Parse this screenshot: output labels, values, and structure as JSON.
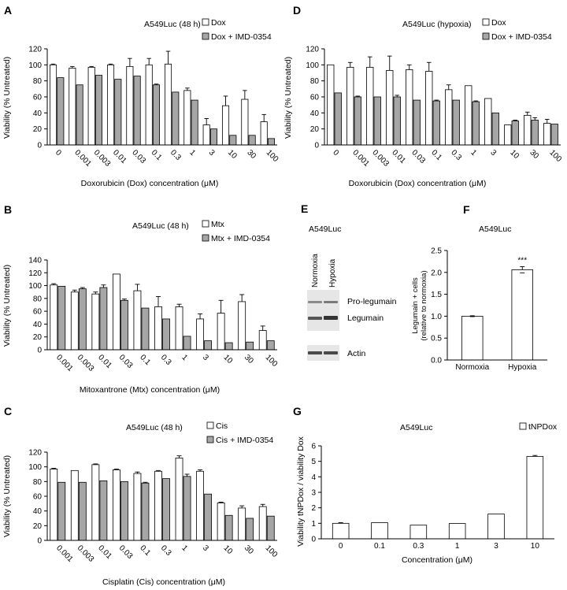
{
  "colors": {
    "bar_a": "#ffffff",
    "bar_b": "#a6a6a6",
    "stroke": "#000000",
    "band": "#444444"
  },
  "chart_data": [
    {
      "id": "A",
      "type": "bar",
      "panel_letter": "A",
      "title": "A549Luc (48 h)",
      "ylabel": "Viability (% Untreated)",
      "xlabel": "Doxorubicin (Dox) concentration (μM)",
      "ylim": [
        0,
        120
      ],
      "yticks": [
        0,
        20,
        40,
        60,
        80,
        100,
        120
      ],
      "grid": false,
      "legend": "top-right",
      "categories": [
        "0",
        "0.001",
        "0.003",
        "0.01",
        "0.03",
        "0.1",
        "0.3",
        "1",
        "3",
        "10",
        "30",
        "100"
      ],
      "series": [
        {
          "name": "Dox",
          "values": [
            100,
            96,
            97,
            100,
            98,
            100,
            101,
            68,
            25,
            49,
            57,
            29
          ],
          "errors": [
            1,
            2,
            1,
            1,
            10,
            8,
            16,
            3,
            8,
            12,
            11,
            9
          ]
        },
        {
          "name": "Dox + IMD-0354",
          "values": [
            84,
            75,
            87,
            82,
            86,
            75,
            66,
            56,
            20,
            12,
            12,
            8
          ],
          "errors": [
            0,
            0,
            0,
            0,
            0,
            1,
            0,
            0,
            0,
            0,
            0,
            0
          ]
        }
      ]
    },
    {
      "id": "B",
      "type": "bar",
      "panel_letter": "B",
      "title": "A549Luc (48 h)",
      "ylabel": "Viability (% Untreated)",
      "xlabel": "Mitoxantrone (Mtx) concentration (μM)",
      "ylim": [
        0,
        140
      ],
      "yticks": [
        0,
        20,
        40,
        60,
        80,
        100,
        120,
        140
      ],
      "grid": false,
      "legend": "top-right",
      "categories": [
        "0.001",
        "0.003",
        "0.01",
        "0.03",
        "0.1",
        "0.3",
        "1",
        "3",
        "10",
        "30",
        "100"
      ],
      "series": [
        {
          "name": "Mtx",
          "values": [
            101,
            90,
            87,
            118,
            92,
            67,
            67,
            48,
            57,
            75,
            30
          ],
          "errors": [
            2,
            3,
            3,
            0,
            10,
            16,
            4,
            8,
            20,
            11,
            7
          ]
        },
        {
          "name": "Mtx + IMD-0354",
          "values": [
            99,
            95,
            97,
            77,
            65,
            48,
            21,
            14,
            11,
            12,
            14
          ],
          "errors": [
            0,
            2,
            4,
            2,
            0,
            0,
            0,
            0,
            0,
            0,
            0
          ]
        }
      ]
    },
    {
      "id": "C",
      "type": "bar",
      "panel_letter": "C",
      "title": "A549Luc (48 h)",
      "ylabel": "Viability (% Untreated)",
      "xlabel": "Cisplatin (Cis) concentration (μM)",
      "ylim": [
        0,
        120
      ],
      "yticks": [
        0,
        20,
        40,
        60,
        80,
        100,
        120
      ],
      "grid": false,
      "legend": "top-right",
      "categories": [
        "0.001",
        "0.003",
        "0.01",
        "0.03",
        "0.1",
        "0.3",
        "1",
        "3",
        "10",
        "30",
        "100"
      ],
      "series": [
        {
          "name": "Cis",
          "values": [
            97,
            95,
            103,
            96,
            91,
            94,
            112,
            94,
            51,
            44,
            46
          ],
          "errors": [
            1,
            0,
            1,
            1,
            2,
            1,
            3,
            2,
            1,
            3,
            3
          ]
        },
        {
          "name": "Cis + IMD-0354",
          "values": [
            79,
            79,
            81,
            80,
            78,
            84,
            87,
            63,
            34,
            30,
            33
          ],
          "errors": [
            0,
            0,
            0,
            0,
            1,
            0,
            3,
            0,
            0,
            0,
            0
          ]
        }
      ]
    },
    {
      "id": "D",
      "type": "bar",
      "panel_letter": "D",
      "title": "A549Luc (hypoxia)",
      "ylabel": "Viability (% Untreated)",
      "xlabel": "Doxorubicin (Dox) concentration (μM)",
      "ylim": [
        0,
        120
      ],
      "yticks": [
        0,
        20,
        40,
        60,
        80,
        100,
        120
      ],
      "grid": false,
      "legend": "top-right",
      "categories": [
        "0",
        "0.001",
        "0.003",
        "0.01",
        "0.03",
        "0.1",
        "0.3",
        "1",
        "3",
        "10",
        "30",
        "100"
      ],
      "series": [
        {
          "name": "Dox",
          "values": [
            100,
            97,
            97,
            93,
            94,
            92,
            69,
            74,
            58,
            25,
            37,
            27
          ],
          "errors": [
            0,
            6,
            13,
            18,
            6,
            11,
            6,
            0,
            0,
            0,
            4,
            5
          ]
        },
        {
          "name": "Dox + IMD-0354",
          "values": [
            65,
            60,
            60,
            60,
            56,
            55,
            56,
            54,
            40,
            30,
            31,
            26
          ],
          "errors": [
            0,
            1,
            0,
            2,
            0,
            1,
            0,
            1,
            0,
            1,
            3,
            0
          ]
        }
      ]
    },
    {
      "id": "F",
      "type": "bar",
      "panel_letter": "F",
      "title": "A549Luc",
      "ylabel": "Legumain + cells (relative to normoxia)",
      "xlabel": "",
      "ylim": [
        0,
        2.5
      ],
      "yticks": [
        0,
        0.5,
        1,
        1.5,
        2,
        2.5
      ],
      "ytick_labels": [
        "0.0",
        "0.5",
        "1.0",
        "1.5",
        "2.0",
        "2.5"
      ],
      "grid": false,
      "legend": "none",
      "categories": [
        "Normoxia",
        "Hypoxia"
      ],
      "series": [
        {
          "name": "",
          "values": [
            1.0,
            2.06
          ],
          "errors": [
            0.01,
            0.07
          ]
        }
      ],
      "annotations": [
        {
          "category": "Hypoxia",
          "text": "***"
        }
      ]
    },
    {
      "id": "G",
      "type": "bar",
      "panel_letter": "G",
      "title": "A549Luc",
      "ylabel": "Viability tNPDox / viability Dox",
      "xlabel": "Concentration (μM)",
      "ylim": [
        0,
        6
      ],
      "yticks": [
        0,
        1,
        2,
        3,
        4,
        5,
        6
      ],
      "grid": false,
      "legend": "top-right",
      "categories": [
        "0",
        "0.1",
        "0.3",
        "1",
        "3",
        "10"
      ],
      "series": [
        {
          "name": "tNPDox",
          "values": [
            1.0,
            1.04,
            0.88,
            0.99,
            1.6,
            5.32
          ],
          "errors": [
            0.04,
            0,
            0,
            0,
            0,
            0.06
          ]
        }
      ]
    }
  ],
  "blot": {
    "panel_letter": "E",
    "title": "A549Luc",
    "lanes": [
      "Normoxia",
      "Hypoxia"
    ],
    "bands": [
      "Pro-legumain",
      "Legumain",
      "Actin"
    ]
  }
}
